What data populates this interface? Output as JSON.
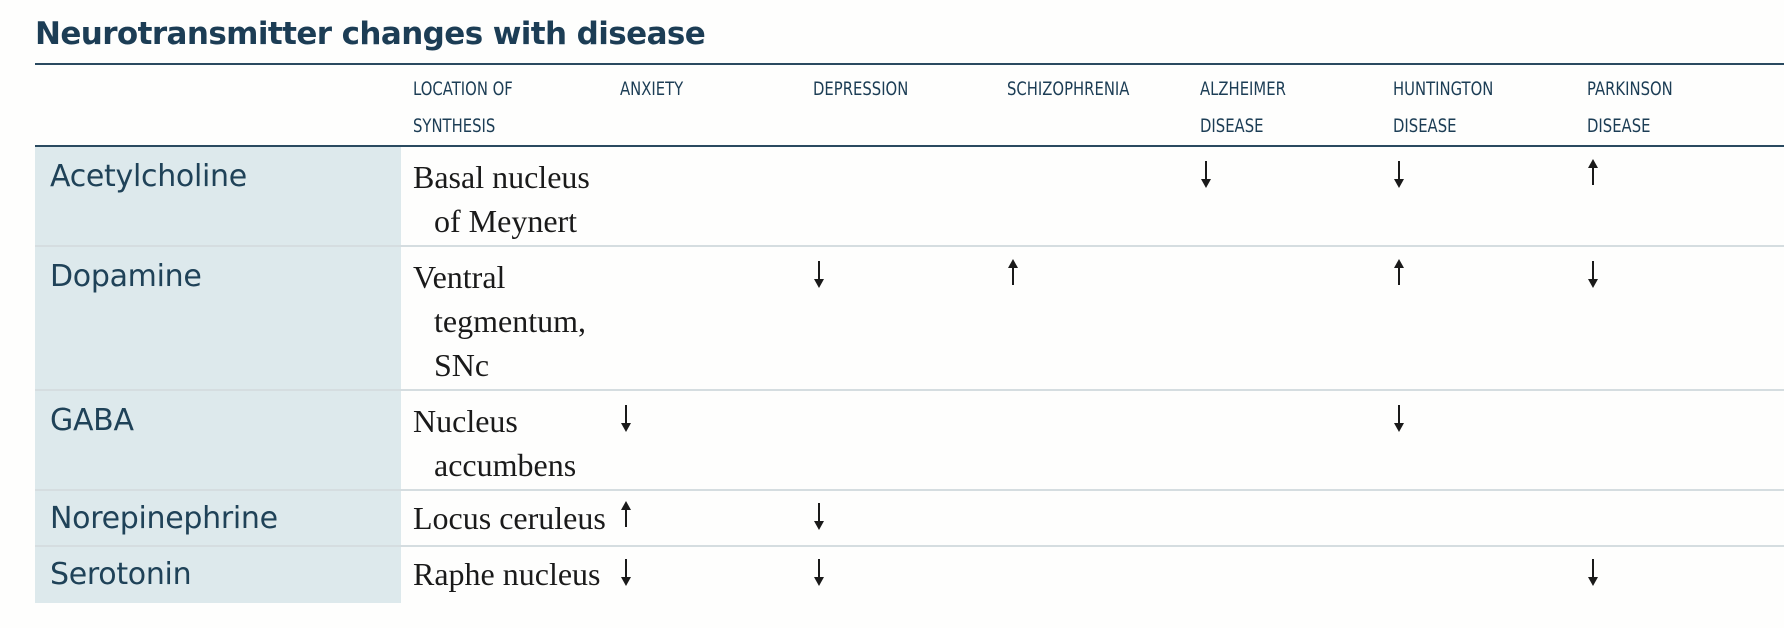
{
  "title": "Neurotransmitter changes with disease",
  "columns": {
    "name": "",
    "location": "LOCATION OF\nSYNTHESIS",
    "anxiety": "ANXIETY",
    "depression": "DEPRESSION",
    "schizophrenia": "SCHIZOPHRENIA",
    "alzheimer": "ALZHEIMER\nDISEASE",
    "huntington": "HUNTINGTON\nDISEASE",
    "parkinson": "PARKINSON\nDISEASE"
  },
  "rows": [
    {
      "name": "Acetylcholine",
      "location": [
        "Basal nucleus",
        "of Meynert"
      ],
      "anxiety": "",
      "depression": "",
      "schizophrenia": "",
      "alzheimer": "down",
      "huntington": "down",
      "parkinson": "up"
    },
    {
      "name": "Dopamine",
      "location": [
        "Ventral",
        "tegmentum,",
        "SNc"
      ],
      "anxiety": "",
      "depression": "down",
      "schizophrenia": "up",
      "alzheimer": "",
      "huntington": "up",
      "parkinson": "down"
    },
    {
      "name": "GABA",
      "location": [
        "Nucleus",
        "accumbens"
      ],
      "anxiety": "down",
      "depression": "",
      "schizophrenia": "",
      "alzheimer": "",
      "huntington": "down",
      "parkinson": ""
    },
    {
      "name": "Norepinephrine",
      "location": [
        "Locus ceruleus"
      ],
      "anxiety": "up",
      "depression": "down",
      "schizophrenia": "",
      "alzheimer": "",
      "huntington": "",
      "parkinson": ""
    },
    {
      "name": "Serotonin",
      "location": [
        "Raphe nucleus"
      ],
      "anxiety": "down",
      "depression": "down",
      "schizophrenia": "",
      "alzheimer": "",
      "huntington": "",
      "parkinson": "down"
    }
  ],
  "arrow_icons": {
    "up": "up-arrow-icon",
    "down": "down-arrow-icon"
  },
  "colors": {
    "title": "#1c3d55",
    "name_cell_bg": "#dde9ec",
    "rule": "#2a4a60"
  }
}
